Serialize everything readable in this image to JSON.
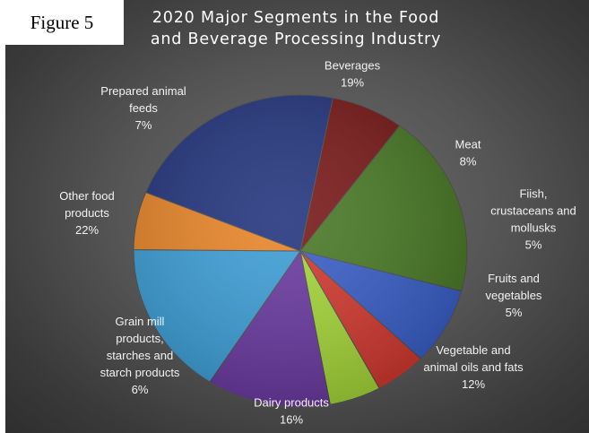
{
  "figure_label": "Figure 5",
  "chart_data": {
    "type": "pie",
    "title_lines": [
      "2020 Major Segments in the Food",
      "and Beverage Processing Industry"
    ],
    "slices": [
      {
        "lines": [
          "Beverages"
        ],
        "pct": "19%",
        "value": 19,
        "color": "#4a7a27"
      },
      {
        "lines": [
          "Meat"
        ],
        "pct": "8%",
        "value": 8,
        "color": "#3a5fc8"
      },
      {
        "lines": [
          "Fiish,",
          "crustaceans and",
          "mollusks"
        ],
        "pct": "5%",
        "value": 5,
        "color": "#d23a30"
      },
      {
        "lines": [
          "Fruits and",
          "vegetables"
        ],
        "pct": "5%",
        "value": 5,
        "color": "#a6d63a"
      },
      {
        "lines": [
          "Vegetable and",
          "animal oils and fats"
        ],
        "pct": "12%",
        "value": 12,
        "color": "#6a3aa0"
      },
      {
        "lines": [
          "Dairy products"
        ],
        "pct": "16%",
        "value": 16,
        "color": "#3d9fd6"
      },
      {
        "lines": [
          "Grain mill",
          "products,",
          "starches and",
          "starch products"
        ],
        "pct": "6%",
        "value": 6,
        "color": "#e8862a"
      },
      {
        "lines": [
          "Other food",
          "products"
        ],
        "pct": "22%",
        "value": 22,
        "color": "#24367e"
      },
      {
        "lines": [
          "Prepared animal",
          "feeds"
        ],
        "pct": "7%",
        "value": 7,
        "color": "#7a1a1a"
      }
    ]
  }
}
